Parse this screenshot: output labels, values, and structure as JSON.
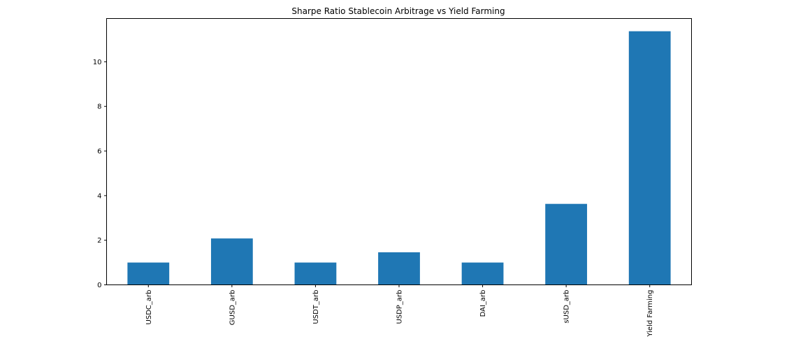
{
  "chart_data": {
    "type": "bar",
    "title": "Sharpe Ratio Stablecoin Arbitrage vs Yield Farming",
    "xlabel": "",
    "ylabel": "",
    "categories": [
      "USDC_arb",
      "GUSD_arb",
      "USDT_arb",
      "USDP_arb",
      "DAI_arb",
      "sUSD_arb",
      "Yield Farming"
    ],
    "values": [
      1.0,
      2.08,
      1.0,
      1.46,
      1.0,
      3.63,
      11.37
    ],
    "ylim": [
      0,
      11.94
    ],
    "yticks": [
      0,
      2,
      4,
      6,
      8,
      10
    ],
    "grid": false,
    "legend": "none",
    "bar_color": "#1f77b4"
  }
}
